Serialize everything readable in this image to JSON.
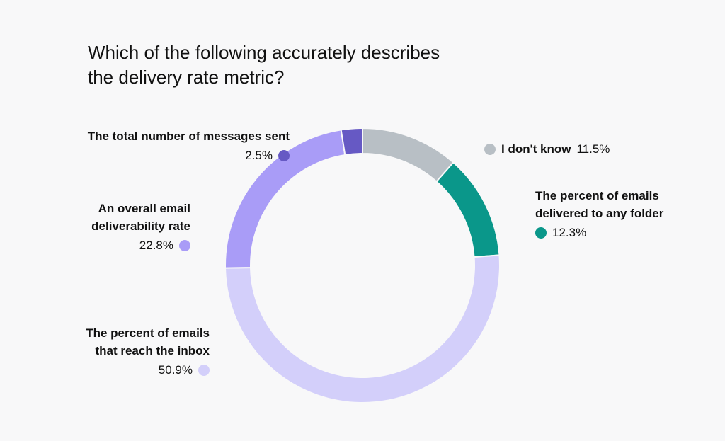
{
  "title": {
    "line1": "Which of the following accurately describes",
    "line2": "the delivery rate metric?"
  },
  "chart_data": {
    "type": "pie",
    "variant": "donut",
    "title": "Which of the following accurately describes the delivery rate metric?",
    "slices": [
      {
        "label": "I don't know",
        "value": 11.5,
        "display": "11.5%",
        "color": "#b8bfc5"
      },
      {
        "label": "The percent of emails delivered to any folder",
        "value": 12.3,
        "display": "12.3%",
        "color": "#0a978a"
      },
      {
        "label": "The percent of emails that reach the inbox",
        "value": 50.9,
        "display": "50.9%",
        "color": "#d3cffa"
      },
      {
        "label": "An overall email deliverability rate",
        "value": 22.8,
        "display": "22.8%",
        "color": "#a99cf7"
      },
      {
        "label": "The total number of messages sent",
        "value": 2.5,
        "display": "2.5%",
        "color": "#6659c4"
      }
    ]
  },
  "labels": {
    "dont_know": {
      "name": "I don't know",
      "value": "11.5%"
    },
    "any_folder": {
      "name_line1": "The percent of emails",
      "name_line2": "delivered to any folder",
      "value": "12.3%"
    },
    "inbox": {
      "name_line1": "The percent of emails",
      "name_line2": "that reach the inbox",
      "value": "50.9%"
    },
    "deliverability": {
      "name_line1": "An overall email",
      "name_line2": "deliverability rate",
      "value": "22.8%"
    },
    "total_sent": {
      "name": "The total number of messages sent",
      "value": "2.5%"
    }
  }
}
